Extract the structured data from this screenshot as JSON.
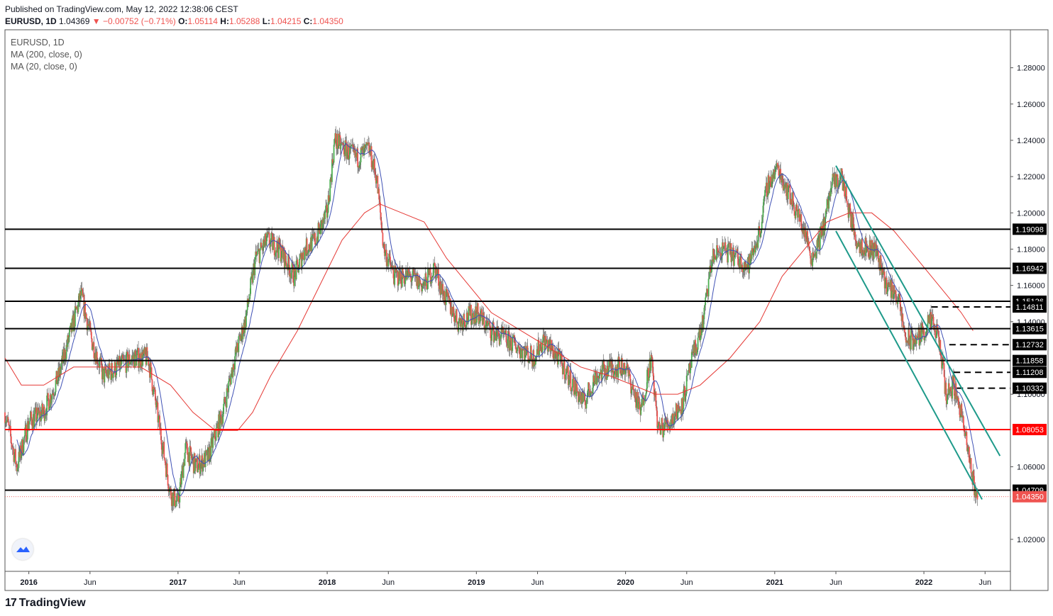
{
  "header": {
    "published": "Published on TradingView.com, May 12, 2022 12:38:06 CEST",
    "symbol": "EURUSD, 1D",
    "last": "1.04369",
    "change": "−0.00752 (−0.71%)",
    "o_label": "O:",
    "o": "1.05114",
    "h_label": "H:",
    "h": "1.05288",
    "l_label": "L:",
    "l": "1.04215",
    "c_label": "C:",
    "c": "1.04350"
  },
  "legend": {
    "symbol": "EURUSD, 1D",
    "ma200": "MA (200, close, 0)",
    "ma20": "MA (20, close, 0)"
  },
  "footer": {
    "brand": "TradingView",
    "mark": "17"
  },
  "colors": {
    "up": "#26a69a",
    "down": "#ef5350",
    "bull_candle": "#4caf50",
    "bear_candle": "#ef5350",
    "ma200": "#e53935",
    "ma20": "#3f51b5",
    "channel": "#1e9a8a",
    "level": "#000000",
    "key_level": "#ff0000"
  },
  "chart_data": {
    "type": "candlestick",
    "title": "EURUSD, 1D",
    "ylim": [
      1.0,
      1.29
    ],
    "y_ticks": [
      "1.28000",
      "1.26000",
      "1.24000",
      "1.22000",
      "1.20000",
      "1.18000",
      "1.16000",
      "1.14000",
      "1.10000",
      "1.06000",
      "1.02000"
    ],
    "x_ticks": [
      {
        "label": "2016",
        "t": 2016.0,
        "bold": true
      },
      {
        "label": "Jun",
        "t": 2016.41,
        "bold": false
      },
      {
        "label": "2017",
        "t": 2017.0,
        "bold": true
      },
      {
        "label": "Jun",
        "t": 2017.41,
        "bold": false
      },
      {
        "label": "2018",
        "t": 2018.0,
        "bold": true
      },
      {
        "label": "Jun",
        "t": 2018.41,
        "bold": false
      },
      {
        "label": "2019",
        "t": 2019.0,
        "bold": true
      },
      {
        "label": "Jun",
        "t": 2019.41,
        "bold": false
      },
      {
        "label": "2020",
        "t": 2020.0,
        "bold": true
      },
      {
        "label": "Jun",
        "t": 2020.41,
        "bold": false
      },
      {
        "label": "2021",
        "t": 2021.0,
        "bold": true
      },
      {
        "label": "Jun",
        "t": 2021.41,
        "bold": false
      },
      {
        "label": "2022",
        "t": 2022.0,
        "bold": true
      },
      {
        "label": "Jun",
        "t": 2022.41,
        "bold": false
      }
    ],
    "price_path": [
      [
        2015.84,
        1.09
      ],
      [
        2015.92,
        1.06
      ],
      [
        2016.0,
        1.085
      ],
      [
        2016.1,
        1.09
      ],
      [
        2016.2,
        1.11
      ],
      [
        2016.3,
        1.14
      ],
      [
        2016.35,
        1.155
      ],
      [
        2016.42,
        1.13
      ],
      [
        2016.5,
        1.11
      ],
      [
        2016.6,
        1.115
      ],
      [
        2016.7,
        1.12
      ],
      [
        2016.8,
        1.12
      ],
      [
        2016.88,
        1.08
      ],
      [
        2016.95,
        1.045
      ],
      [
        2017.0,
        1.04
      ],
      [
        2017.05,
        1.07
      ],
      [
        2017.12,
        1.06
      ],
      [
        2017.2,
        1.065
      ],
      [
        2017.3,
        1.09
      ],
      [
        2017.38,
        1.12
      ],
      [
        2017.45,
        1.14
      ],
      [
        2017.52,
        1.175
      ],
      [
        2017.6,
        1.185
      ],
      [
        2017.68,
        1.18
      ],
      [
        2017.78,
        1.165
      ],
      [
        2017.85,
        1.18
      ],
      [
        2017.92,
        1.185
      ],
      [
        2018.0,
        1.2
      ],
      [
        2018.05,
        1.24
      ],
      [
        2018.12,
        1.235
      ],
      [
        2018.2,
        1.23
      ],
      [
        2018.28,
        1.235
      ],
      [
        2018.33,
        1.22
      ],
      [
        2018.38,
        1.18
      ],
      [
        2018.45,
        1.165
      ],
      [
        2018.55,
        1.165
      ],
      [
        2018.65,
        1.16
      ],
      [
        2018.72,
        1.17
      ],
      [
        2018.78,
        1.155
      ],
      [
        2018.88,
        1.14
      ],
      [
        2019.0,
        1.145
      ],
      [
        2019.1,
        1.135
      ],
      [
        2019.2,
        1.13
      ],
      [
        2019.3,
        1.125
      ],
      [
        2019.38,
        1.12
      ],
      [
        2019.45,
        1.13
      ],
      [
        2019.55,
        1.12
      ],
      [
        2019.65,
        1.105
      ],
      [
        2019.72,
        1.095
      ],
      [
        2019.8,
        1.11
      ],
      [
        2019.9,
        1.115
      ],
      [
        2020.0,
        1.115
      ],
      [
        2020.1,
        1.09
      ],
      [
        2020.17,
        1.12
      ],
      [
        2020.22,
        1.08
      ],
      [
        2020.3,
        1.085
      ],
      [
        2020.38,
        1.095
      ],
      [
        2020.45,
        1.12
      ],
      [
        2020.52,
        1.14
      ],
      [
        2020.58,
        1.175
      ],
      [
        2020.65,
        1.18
      ],
      [
        2020.75,
        1.175
      ],
      [
        2020.82,
        1.17
      ],
      [
        2020.9,
        1.19
      ],
      [
        2020.95,
        1.215
      ],
      [
        2021.02,
        1.225
      ],
      [
        2021.1,
        1.21
      ],
      [
        2021.2,
        1.19
      ],
      [
        2021.25,
        1.175
      ],
      [
        2021.32,
        1.19
      ],
      [
        2021.38,
        1.215
      ],
      [
        2021.45,
        1.22
      ],
      [
        2021.5,
        1.2
      ],
      [
        2021.55,
        1.185
      ],
      [
        2021.62,
        1.18
      ],
      [
        2021.68,
        1.18
      ],
      [
        2021.75,
        1.16
      ],
      [
        2021.82,
        1.155
      ],
      [
        2021.88,
        1.13
      ],
      [
        2021.95,
        1.13
      ],
      [
        2022.0,
        1.135
      ],
      [
        2022.05,
        1.14
      ],
      [
        2022.1,
        1.13
      ],
      [
        2022.15,
        1.1
      ],
      [
        2022.2,
        1.105
      ],
      [
        2022.25,
        1.09
      ],
      [
        2022.3,
        1.065
      ],
      [
        2022.35,
        1.045
      ],
      [
        2022.36,
        1.0435
      ]
    ],
    "ma200_path": [
      [
        2015.84,
        1.12
      ],
      [
        2015.95,
        1.105
      ],
      [
        2016.1,
        1.105
      ],
      [
        2016.3,
        1.115
      ],
      [
        2016.5,
        1.115
      ],
      [
        2016.75,
        1.115
      ],
      [
        2016.95,
        1.105
      ],
      [
        2017.1,
        1.09
      ],
      [
        2017.25,
        1.08
      ],
      [
        2017.4,
        1.08
      ],
      [
        2017.5,
        1.09
      ],
      [
        2017.62,
        1.11
      ],
      [
        2017.8,
        1.135
      ],
      [
        2017.95,
        1.16
      ],
      [
        2018.1,
        1.185
      ],
      [
        2018.25,
        1.2
      ],
      [
        2018.35,
        1.205
      ],
      [
        2018.5,
        1.2
      ],
      [
        2018.65,
        1.195
      ],
      [
        2018.8,
        1.175
      ],
      [
        2018.95,
        1.16
      ],
      [
        2019.1,
        1.145
      ],
      [
        2019.3,
        1.135
      ],
      [
        2019.5,
        1.125
      ],
      [
        2019.7,
        1.115
      ],
      [
        2019.9,
        1.11
      ],
      [
        2020.05,
        1.105
      ],
      [
        2020.2,
        1.1
      ],
      [
        2020.35,
        1.1
      ],
      [
        2020.5,
        1.105
      ],
      [
        2020.7,
        1.12
      ],
      [
        2020.9,
        1.14
      ],
      [
        2021.05,
        1.165
      ],
      [
        2021.2,
        1.18
      ],
      [
        2021.35,
        1.195
      ],
      [
        2021.5,
        1.2
      ],
      [
        2021.65,
        1.2
      ],
      [
        2021.8,
        1.19
      ],
      [
        2021.95,
        1.175
      ],
      [
        2022.05,
        1.165
      ],
      [
        2022.15,
        1.155
      ],
      [
        2022.25,
        1.145
      ],
      [
        2022.33,
        1.135
      ]
    ],
    "horizontal_levels": [
      {
        "value": 1.19098,
        "label": "1.19098",
        "color": "#000000"
      },
      {
        "value": 1.16942,
        "label": "1.16942",
        "color": "#000000"
      },
      {
        "value": 1.15126,
        "label": "1.15126",
        "color": "#000000"
      },
      {
        "value": 1.13615,
        "label": "1.13615",
        "color": "#000000"
      },
      {
        "value": 1.11858,
        "label": "1.11858",
        "color": "#000000"
      },
      {
        "value": 1.08053,
        "label": "1.08053",
        "color": "#ff0000"
      },
      {
        "value": 1.04709,
        "label": "1.04709",
        "color": "#000000"
      }
    ],
    "dashed_levels": [
      {
        "value": 1.14811,
        "label": "1.14811",
        "from": 2022.05
      },
      {
        "value": 1.12732,
        "label": "1.12732",
        "from": 2022.17
      },
      {
        "value": 1.11208,
        "label": "1.11208",
        "from": 2022.2
      },
      {
        "value": 1.10332,
        "label": "1.10332",
        "from": 2022.22
      }
    ],
    "last_price": {
      "value": 1.0435,
      "label": "1.04350",
      "color": "#ef5350"
    },
    "channel": [
      {
        "from": [
          2021.41,
          1.226
        ],
        "to": [
          2022.51,
          1.066
        ]
      },
      {
        "from": [
          2021.41,
          1.19
        ],
        "to": [
          2022.39,
          1.042
        ]
      }
    ],
    "grid": false
  }
}
